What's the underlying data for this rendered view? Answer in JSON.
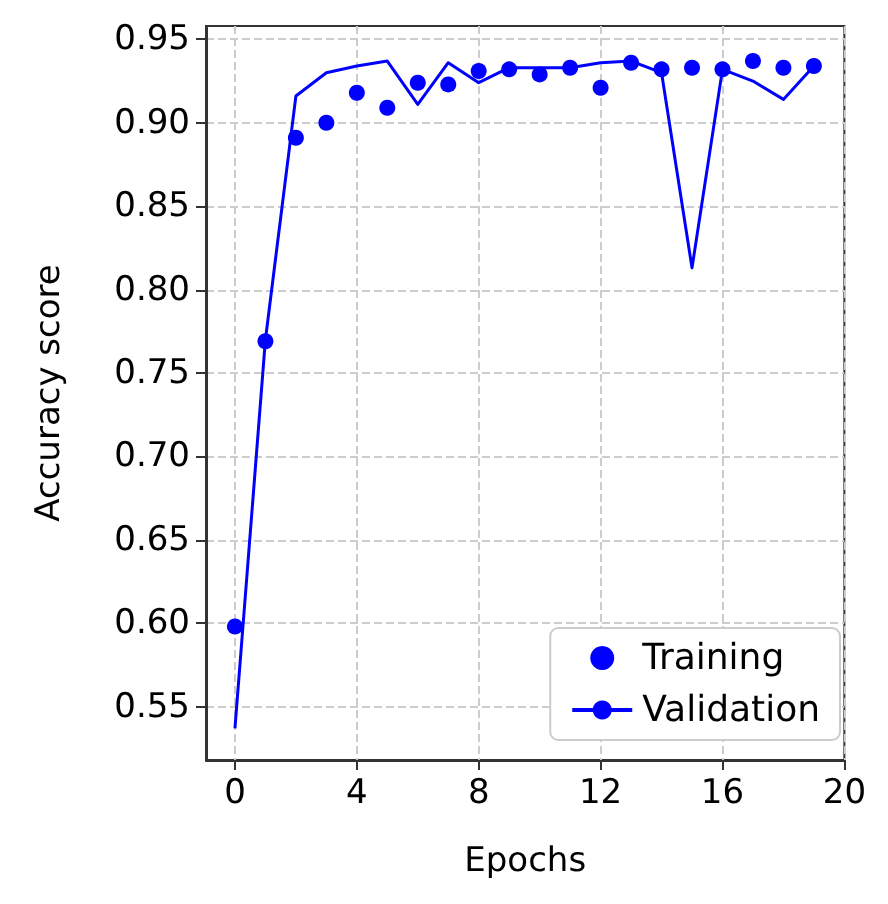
{
  "chart_data": {
    "type": "line",
    "xlabel": "Epochs",
    "ylabel": "Accuracy score",
    "x": [
      0,
      1,
      2,
      3,
      4,
      5,
      6,
      7,
      8,
      9,
      10,
      11,
      12,
      13,
      14,
      15,
      16,
      17,
      18,
      19
    ],
    "series": [
      {
        "name": "Training",
        "type": "scatter",
        "color": "#0000ff",
        "marker": "circle",
        "values": [
          0.598,
          0.769,
          0.891,
          0.9,
          0.918,
          0.909,
          0.924,
          0.923,
          0.931,
          0.932,
          0.929,
          0.933,
          0.921,
          0.936,
          0.932,
          0.933,
          0.932,
          0.937,
          0.933,
          0.934
        ]
      },
      {
        "name": "Validation",
        "color": "#0000ff",
        "line_style": "solid",
        "values": [
          0.537,
          0.77,
          0.916,
          0.93,
          0.934,
          0.937,
          0.911,
          0.936,
          0.924,
          0.933,
          0.933,
          0.933,
          0.936,
          0.937,
          0.93,
          0.813,
          0.932,
          0.925,
          0.914,
          0.934
        ]
      }
    ],
    "xlim": [
      -0.95,
      20
    ],
    "xticks": [
      0,
      4,
      8,
      12,
      16,
      20
    ],
    "ylim": [
      0.518,
      0.958
    ],
    "yticks": [
      {
        "value": 0.55,
        "label": "0.55"
      },
      {
        "value": 0.6,
        "label": "0.60"
      },
      {
        "value": 0.65,
        "label": "0.65"
      },
      {
        "value": 0.7,
        "label": "0.70"
      },
      {
        "value": 0.75,
        "label": "0.75"
      },
      {
        "value": 0.8,
        "label": "0.80"
      },
      {
        "value": 0.85,
        "label": "0.85"
      },
      {
        "value": 0.9,
        "label": "0.90"
      },
      {
        "value": 0.95,
        "label": "0.95"
      }
    ],
    "grid": true,
    "legend": "bottom right"
  }
}
